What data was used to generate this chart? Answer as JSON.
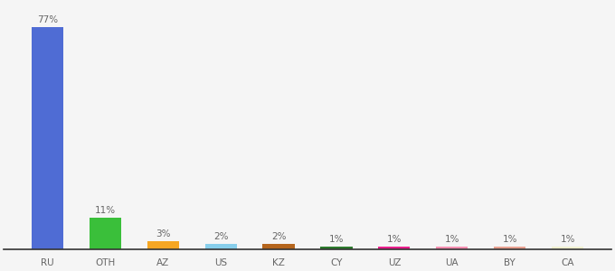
{
  "categories": [
    "RU",
    "OTH",
    "AZ",
    "US",
    "KZ",
    "CY",
    "UZ",
    "UA",
    "BY",
    "CA"
  ],
  "values": [
    77,
    11,
    3,
    2,
    2,
    1,
    1,
    1,
    1,
    1
  ],
  "bar_colors": [
    "#4f6cd4",
    "#3abf3a",
    "#f5a623",
    "#87ceeb",
    "#b5651d",
    "#2d7a2d",
    "#e91e8c",
    "#f48fb1",
    "#e8a090",
    "#f0f0d0"
  ],
  "labels": [
    "77%",
    "11%",
    "3%",
    "2%",
    "2%",
    "1%",
    "1%",
    "1%",
    "1%",
    "1%"
  ],
  "bg_color": "#f5f5f5",
  "label_fontsize": 7.5,
  "tick_fontsize": 7.5,
  "ylim": [
    0,
    85
  ],
  "bar_width": 0.55
}
